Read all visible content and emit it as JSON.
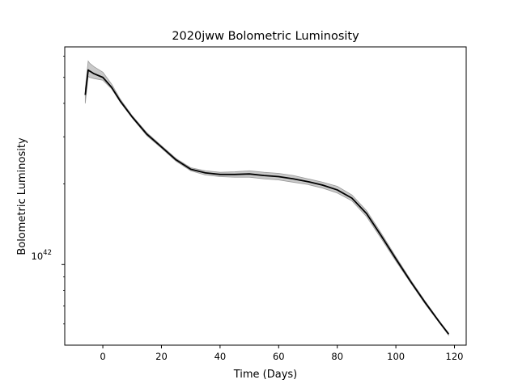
{
  "chart_data": {
    "type": "line",
    "title": "2020jww Bolometric Luminosity",
    "xlabel": "Time (Days)",
    "ylabel": "Bolometric Luminosity",
    "xlim": [
      -13,
      124
    ],
    "ylim": [
      5e+41,
      6.5e+42
    ],
    "yscale": "log",
    "grid": false,
    "xticks": [
      0,
      20,
      40,
      60,
      80,
      100,
      120
    ],
    "ytick_label": {
      "base": "10",
      "exponent": "42",
      "value": 1e+42
    },
    "y_minor_ticks": [
      6e+41,
      7e+41,
      8e+41,
      9e+41,
      2e+42,
      3e+42,
      4e+42,
      5e+42,
      6e+42
    ],
    "line_color": "#000000",
    "band_color": "#bfbfbf",
    "series": [
      {
        "x": [
          -6,
          -5,
          -4.5,
          -3,
          0,
          3,
          6,
          10,
          15,
          20,
          25,
          30,
          35,
          40,
          45,
          50,
          55,
          60,
          65,
          70,
          75,
          80,
          85,
          90,
          95,
          100,
          105,
          110,
          115,
          118
        ],
        "y": [
          4.3e+42,
          5.33e+42,
          5.28e+42,
          5.16e+42,
          5e+42,
          4.59e+42,
          4.07e+42,
          3.56e+42,
          3.07e+42,
          2.75e+42,
          2.46e+42,
          2.27e+42,
          2.2e+42,
          2.17e+42,
          2.17e+42,
          2.18e+42,
          2.15e+42,
          2.13e+42,
          2.09e+42,
          2.04e+42,
          1.98e+42,
          1.9e+42,
          1.77e+42,
          1.55e+42,
          1.28e+42,
          1.05e+42,
          8.65e+41,
          7.21e+41,
          6.07e+41,
          5.5e+41
        ],
        "y_lower": [
          4e+42,
          5.05e+42,
          5e+42,
          4.95e+42,
          4.88e+42,
          4.53e+42,
          4.03e+42,
          3.53e+42,
          3.03e+42,
          2.72e+42,
          2.43e+42,
          2.24e+42,
          2.16e+42,
          2.13e+42,
          2.12e+42,
          2.12e+42,
          2.09e+42,
          2.07e+42,
          2.03e+42,
          1.99e+42,
          1.93e+42,
          1.85e+42,
          1.73e+42,
          1.51e+42,
          1.25e+42,
          1.03e+42,
          8.55e+41,
          7.12e+41,
          6.02e+41,
          5.45e+41
        ],
        "y_upper": [
          4.55e+42,
          5.75e+42,
          5.65e+42,
          5.48e+42,
          5.23e+42,
          4.72e+42,
          4.14e+42,
          3.6e+42,
          3.11e+42,
          2.78e+42,
          2.49e+42,
          2.3e+42,
          2.24e+42,
          2.21e+42,
          2.22e+42,
          2.24e+42,
          2.21e+42,
          2.19e+42,
          2.15e+42,
          2.09e+42,
          2.03e+42,
          1.96e+42,
          1.82e+42,
          1.59e+42,
          1.31e+42,
          1.07e+42,
          8.78e+41,
          7.3e+41,
          6.12e+41,
          5.55e+41
        ]
      }
    ]
  }
}
